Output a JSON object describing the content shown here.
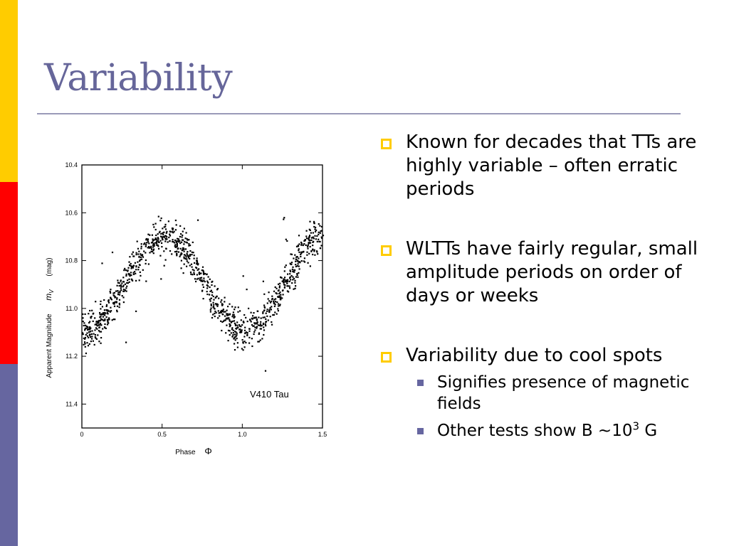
{
  "slide": {
    "title": "Variability",
    "colors": {
      "stripe_top": "#ffcc00",
      "stripe_middle": "#ff0000",
      "stripe_bottom": "#6666a0",
      "title": "#66669a"
    },
    "bullets": [
      {
        "text": "Known for decades that TTs are highly variable – often erratic periods"
      },
      {
        "text": "WLTTs have fairly regular, small amplitude periods on order of days or weeks"
      },
      {
        "text": "Variability due to cool spots"
      }
    ],
    "sub_bullets": [
      {
        "text": "Signifies presence of magnetic fields"
      },
      {
        "text_prefix": "Other tests show B ~10",
        "superscript": "3",
        "text_suffix": " G"
      }
    ]
  },
  "chart_data": {
    "type": "scatter",
    "xlabel": "Phase",
    "xlabel_symbol": "Φ",
    "ylabel": "Apparent Magnitude",
    "ylabel_symbol": "m",
    "ylabel_subscript": "V",
    "ylabel_unit": "(mag)",
    "annotation": "V410 Tau",
    "xlim": [
      0,
      1.5
    ],
    "ylim": [
      10.4,
      11.5
    ],
    "y_inverted": true,
    "x_ticks": [
      0,
      0.5,
      1.0,
      1.5
    ],
    "x_tick_labels": [
      "0",
      "0.5",
      "1.0",
      "1.5"
    ],
    "y_ticks": [
      10.4,
      10.6,
      10.8,
      11.0,
      11.2,
      11.4
    ],
    "y_tick_labels": [
      "10.4",
      "10.6",
      "10.8",
      "11.0",
      "11.2",
      "11.4"
    ],
    "light_curve": {
      "mean": 10.89,
      "amplitude": 0.2,
      "brightest_phase": 0.51,
      "period_phase": 1.0,
      "scatter": 0.075
    },
    "point_count": 1150
  }
}
